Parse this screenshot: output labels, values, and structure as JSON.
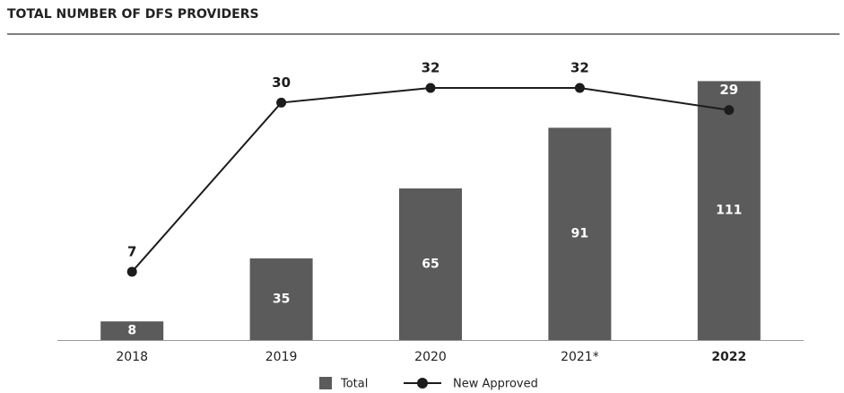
{
  "chart_data": {
    "type": "bar_line",
    "title": "TOTAL NUMBER OF DFS PROVIDERS",
    "categories": [
      "2018",
      "2019",
      "2020",
      "2021*",
      "2022"
    ],
    "series": [
      {
        "name": "Total",
        "color": "#5b5b5b",
        "values": [
          8,
          35,
          65,
          91,
          111
        ]
      },
      {
        "name": "New Approved",
        "color": "#1c1c1c",
        "values": [
          7,
          30,
          32,
          32,
          29
        ],
        "axis": "y2"
      }
    ],
    "ylim": [
      0,
      115
    ],
    "y2lim": [
      -2.3,
      34.2
    ]
  }
}
